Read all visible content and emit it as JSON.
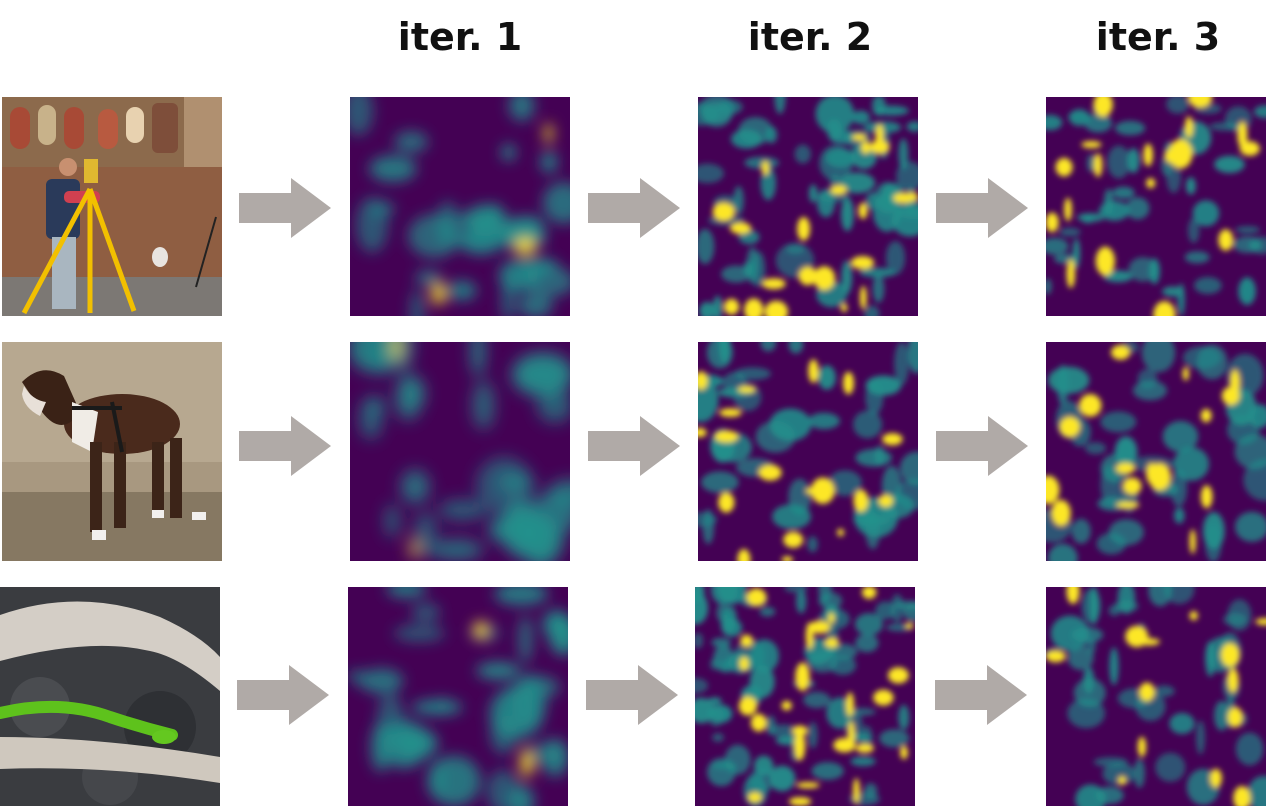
{
  "headers": [
    "iter. 1",
    "iter. 2",
    "iter. 3"
  ],
  "colors": {
    "arrow": "#b0aaa7",
    "heat_low": "#440154",
    "heat_mid": "#21918c",
    "heat_high": "#fde725"
  },
  "rows": [
    {
      "input": "surveyor-with-tripod-photo",
      "maps": [
        {
          "seed": 11,
          "blobs": 26,
          "hot": 3,
          "spread": 1.0,
          "blur": 7
        },
        {
          "seed": 12,
          "blobs": 60,
          "hot": 22,
          "spread": 0.7,
          "blur": 3
        },
        {
          "seed": 13,
          "blobs": 45,
          "hot": 18,
          "spread": 0.6,
          "blur": 3
        }
      ]
    },
    {
      "input": "boxer-dog-photo",
      "maps": [
        {
          "seed": 21,
          "blobs": 24,
          "hot": 2,
          "spread": 1.1,
          "blur": 8
        },
        {
          "seed": 22,
          "blobs": 40,
          "hot": 18,
          "spread": 0.8,
          "blur": 3
        },
        {
          "seed": 23,
          "blobs": 38,
          "hot": 16,
          "spread": 0.8,
          "blur": 3
        }
      ]
    },
    {
      "input": "green-snake-on-branch-photo",
      "maps": [
        {
          "seed": 31,
          "blobs": 28,
          "hot": 2,
          "spread": 1.0,
          "blur": 7
        },
        {
          "seed": 32,
          "blobs": 70,
          "hot": 26,
          "spread": 0.6,
          "blur": 3
        },
        {
          "seed": 33,
          "blobs": 40,
          "hot": 14,
          "spread": 0.7,
          "blur": 3
        }
      ]
    }
  ]
}
